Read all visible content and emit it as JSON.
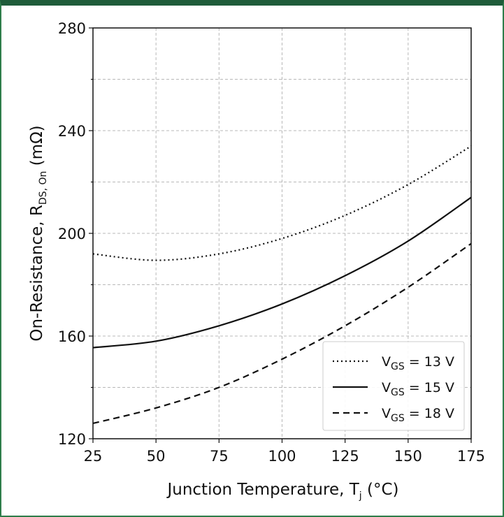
{
  "chart_data": {
    "type": "line",
    "xlabel": "Junction Temperature, T",
    "xlabel_sub": "j",
    "xlabel_unit": "(°C)",
    "ylabel": "On-Resistance, R",
    "ylabel_sub": "DS, On",
    "ylabel_unit": "(mΩ)",
    "xlim": [
      25,
      175
    ],
    "ylim": [
      120,
      280
    ],
    "xticks": [
      25,
      50,
      75,
      100,
      125,
      150,
      175
    ],
    "yticks": [
      120,
      160,
      200,
      240,
      280
    ],
    "grid": true,
    "grid_style": "dashed",
    "legend_position": "bottom-right",
    "x": [
      25,
      50,
      75,
      100,
      125,
      150,
      175
    ],
    "series": [
      {
        "name": "V",
        "name_sub": "GS",
        "name_value": "= 13 V",
        "style": "dotted",
        "values": [
          192,
          189.5,
          192,
          198,
          207,
          219,
          234
        ]
      },
      {
        "name": "V",
        "name_sub": "GS",
        "name_value": "= 15 V",
        "style": "solid",
        "values": [
          155.5,
          158,
          164,
          172.5,
          183.5,
          197,
          214
        ]
      },
      {
        "name": "V",
        "name_sub": "GS",
        "name_value": "= 18 V",
        "style": "dashed",
        "values": [
          126,
          132,
          140,
          151,
          164,
          179,
          196
        ]
      }
    ]
  },
  "colors": {
    "line": "#111111",
    "grid": "#b8b8b8",
    "frame": "#2e7d4a",
    "frame_top": "#1f5c3a"
  }
}
